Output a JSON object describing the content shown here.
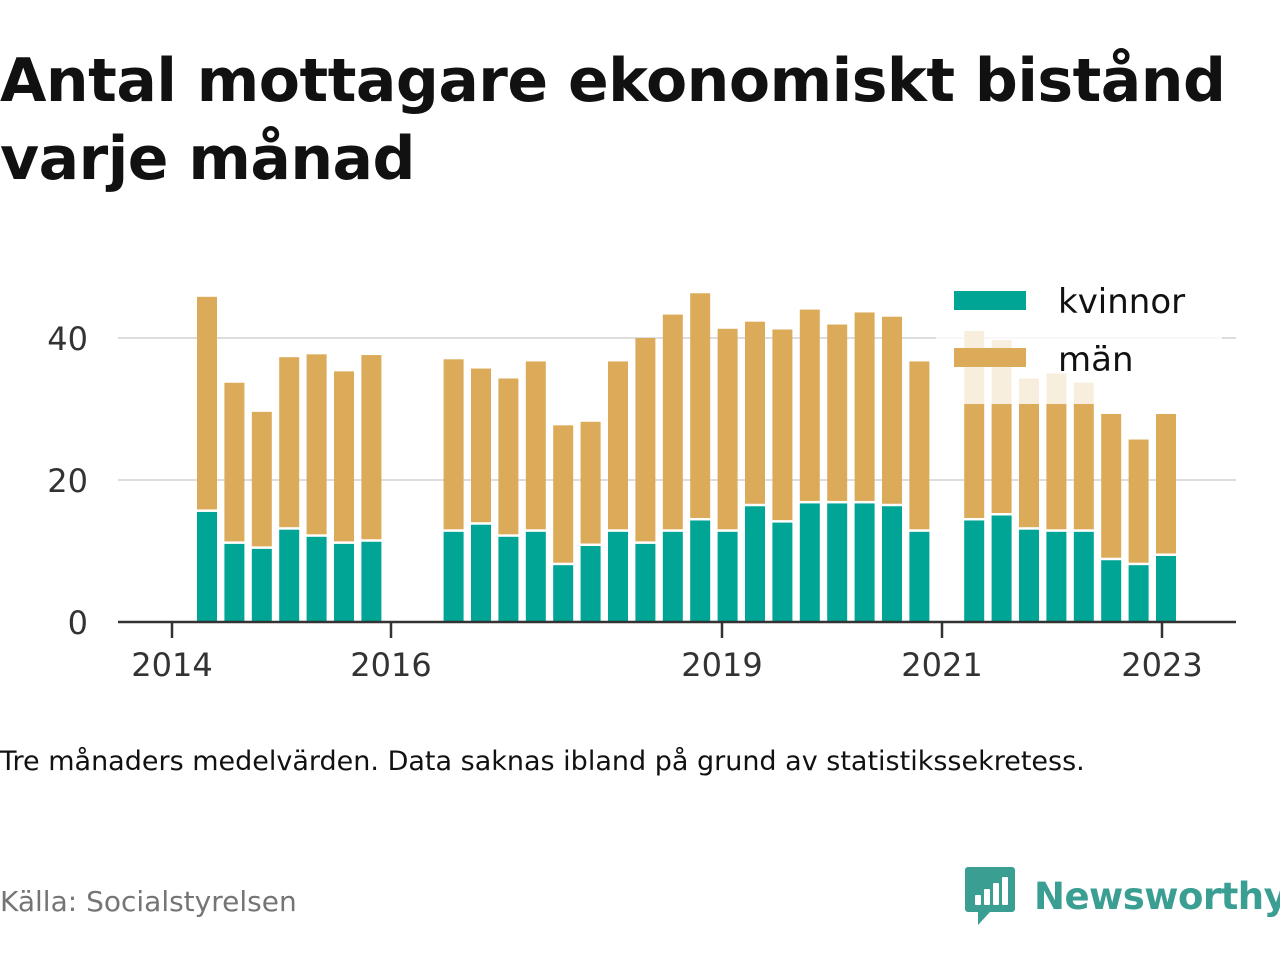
{
  "title_line1": "Antal mottagare ekonomiskt bistånd",
  "title_line2": "varje månad",
  "note": "Tre månaders medelvärden. Data saknas ibland på grund av statistikssekretess.",
  "source": "Källa: Socialstyrelsen",
  "brand": "Newsworthy",
  "colors": {
    "kvinnor": "#00a596",
    "man": "#dcab5a",
    "grid": "#dddddd",
    "axis": "#333333",
    "brand": "#3a9e93"
  },
  "chart_data": {
    "type": "bar",
    "stacked": true,
    "x_ticks": [
      "2014",
      "2016",
      "2019",
      "2021",
      "2023"
    ],
    "y_ticks": [
      0,
      20,
      40
    ],
    "ylim": [
      0,
      48
    ],
    "grid": true,
    "legend_position": "top-right",
    "series": [
      {
        "name": "kvinnor",
        "color": "#00a596",
        "values": [
          15.5,
          11.0,
          10.3,
          13.0,
          12.0,
          11.0,
          11.3,
          null,
          null,
          12.7,
          13.7,
          12.0,
          12.7,
          8.0,
          10.7,
          12.7,
          11.0,
          12.7,
          14.3,
          12.7,
          16.3,
          14.0,
          16.7,
          16.7,
          16.7,
          16.3,
          12.7,
          null,
          14.3,
          15.0,
          13.0,
          12.7,
          12.7,
          8.7,
          8.0,
          9.3
        ]
      },
      {
        "name": "män",
        "color": "#dcab5a",
        "values": [
          30.3,
          22.7,
          19.3,
          24.3,
          25.7,
          24.3,
          26.3,
          null,
          null,
          24.3,
          22.0,
          22.3,
          24.0,
          19.7,
          17.5,
          24.0,
          29.0,
          30.6,
          32.0,
          28.6,
          26.0,
          27.2,
          27.3,
          25.2,
          26.9,
          26.7,
          24.0,
          null,
          26.7,
          24.7,
          21.3,
          22.3,
          21.0,
          20.6,
          17.7,
          20.0
        ]
      }
    ],
    "categories": [
      "2014 Q2",
      "2014 Q3",
      "2014 Q4",
      "2015 Q1",
      "2015 Q2",
      "2015 Q3",
      "2015 Q4",
      "2016 Q1",
      "2016 Q2",
      "2016 Q3",
      "2016 Q4",
      "2017 Q1",
      "2017 Q2",
      "2017 Q3",
      "2017 Q4",
      "2018 Q1",
      "2018 Q2",
      "2018 Q3",
      "2018 Q4",
      "2019 Q1",
      "2019 Q2",
      "2019 Q3",
      "2019 Q4",
      "2020 Q1",
      "2020 Q2",
      "2020 Q3",
      "2020 Q4",
      "2021 Q1",
      "2021 Q2",
      "2021 Q3",
      "2021 Q4",
      "2022 Q1",
      "2022 Q2",
      "2022 Q3",
      "2022 Q4",
      "2023 Q1"
    ]
  }
}
